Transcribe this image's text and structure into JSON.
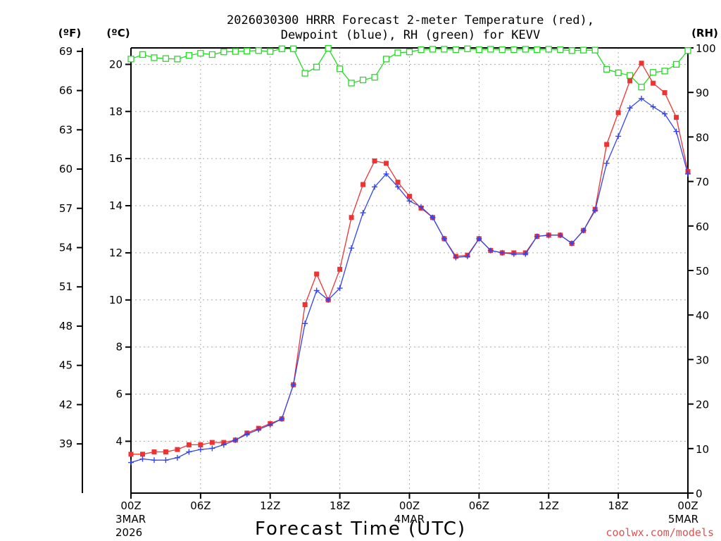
{
  "chart_data": {
    "type": "line",
    "title_line1": "2026030300 HRRR Forecast 2-meter Temperature (red),",
    "title_line2": "Dewpoint (blue), RH (green) for KEVV",
    "xlabel": "Forecast Time (UTC)",
    "watermark": "coolwx.com/models",
    "units": {
      "fahrenheit": "(ºF)",
      "celsius": "(ºC)",
      "rh": "(RH)"
    },
    "x_ticks": [
      {
        "hour": 0,
        "label": "00Z",
        "sub1": "3MAR",
        "sub2": "2026"
      },
      {
        "hour": 6,
        "label": "06Z"
      },
      {
        "hour": 12,
        "label": "12Z"
      },
      {
        "hour": 18,
        "label": "18Z"
      },
      {
        "hour": 24,
        "label": "00Z",
        "sub1": "4MAR"
      },
      {
        "hour": 30,
        "label": "06Z"
      },
      {
        "hour": 36,
        "label": "12Z"
      },
      {
        "hour": 42,
        "label": "18Z"
      },
      {
        "hour": 48,
        "label": "00Z",
        "sub1": "5MAR"
      }
    ],
    "x_range": [
      0,
      48
    ],
    "celsius_range": [
      1.8,
      20.7
    ],
    "celsius_ticks": [
      4,
      6,
      8,
      10,
      12,
      14,
      16,
      18,
      20
    ],
    "fahrenheit_ticks": [
      39,
      42,
      45,
      48,
      51,
      54,
      57,
      60,
      63,
      66,
      69
    ],
    "rh_range": [
      0,
      100
    ],
    "rh_ticks": [
      0,
      10,
      20,
      30,
      40,
      50,
      60,
      70,
      80,
      90,
      100
    ],
    "series": [
      {
        "name": "Temperature",
        "color": "#ee3333",
        "marker": "filled-square",
        "axis": "celsius",
        "values": [
          3.45,
          3.45,
          3.55,
          3.55,
          3.65,
          3.85,
          3.85,
          3.95,
          3.95,
          4.05,
          4.35,
          4.55,
          4.75,
          4.95,
          6.4,
          9.8,
          11.1,
          10.0,
          11.3,
          13.5,
          14.9,
          15.9,
          15.8,
          15.0,
          14.4,
          13.9,
          13.5,
          12.6,
          11.85,
          11.9,
          12.6,
          12.1,
          12.0,
          12.0,
          12.0,
          12.7,
          12.75,
          12.75,
          12.4,
          12.95,
          13.85,
          16.6,
          17.95,
          19.3,
          20.05,
          19.2,
          18.8,
          17.75,
          15.45
        ]
      },
      {
        "name": "Dewpoint",
        "color": "#3344ee",
        "marker": "plus",
        "axis": "celsius",
        "values": [
          3.1,
          3.25,
          3.2,
          3.2,
          3.3,
          3.55,
          3.65,
          3.7,
          3.85,
          4.05,
          4.3,
          4.5,
          4.7,
          4.95,
          6.4,
          9.0,
          10.4,
          10.0,
          10.5,
          12.2,
          13.7,
          14.8,
          15.35,
          14.8,
          14.2,
          13.95,
          13.5,
          12.6,
          11.8,
          11.85,
          12.6,
          12.1,
          12.0,
          11.95,
          11.95,
          12.7,
          12.75,
          12.75,
          12.4,
          12.95,
          13.8,
          15.8,
          16.95,
          18.15,
          18.55,
          18.2,
          17.9,
          17.15,
          15.35
        ]
      },
      {
        "name": "RH",
        "color": "#22dd22",
        "marker": "open-square",
        "axis": "rh",
        "values": [
          97.5,
          98.5,
          97.8,
          97.6,
          97.5,
          98.3,
          98.8,
          98.5,
          99.1,
          99.2,
          99.3,
          99.4,
          99.2,
          99.8,
          99.8,
          94.3,
          95.7,
          99.9,
          95.3,
          92.1,
          92.8,
          93.4,
          97.5,
          98.9,
          99.1,
          99.6,
          99.7,
          99.7,
          99.6,
          99.8,
          99.6,
          99.7,
          99.6,
          99.6,
          99.7,
          99.6,
          99.7,
          99.6,
          99.4,
          99.5,
          99.5,
          95.2,
          94.4,
          93.8,
          91.2,
          94.5,
          94.8,
          96.3,
          99.4
        ]
      }
    ]
  }
}
